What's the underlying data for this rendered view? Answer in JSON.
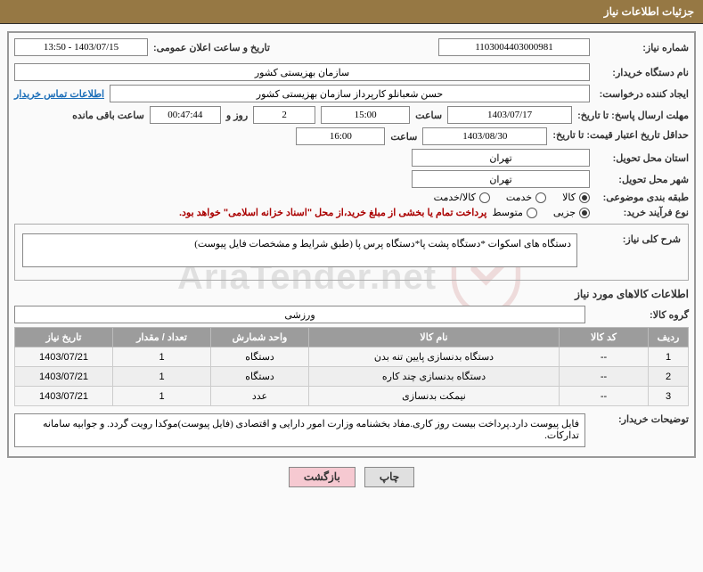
{
  "header": {
    "title": "جزئیات اطلاعات نیاز"
  },
  "watermark": {
    "text": "AriaTender.net"
  },
  "labels": {
    "need_no": "شماره نیاز:",
    "announce_dt": "تاریخ و ساعت اعلان عمومی:",
    "buyer_org": "نام دستگاه خریدار:",
    "requester": "ایجاد کننده درخواست:",
    "contact": "اطلاعات تماس خریدار",
    "deadline": "مهلت ارسال پاسخ: تا تاریخ:",
    "validity": "حداقل تاریخ اعتبار قیمت: تا تاریخ:",
    "time_lbl": "ساعت",
    "days_and": "روز و",
    "remain": "ساعت باقی مانده",
    "deliver_prov": "استان محل تحویل:",
    "deliver_city": "شهر محل تحویل:",
    "category": "طبقه بندی موضوعی:",
    "process": "نوع فرآیند خرید:",
    "desc": "شرح کلی نیاز:",
    "goods_info": "اطلاعات کالاهای مورد نیاز",
    "goods_group": "گروه کالا:",
    "buyer_notes": "توضیحات خریدار:"
  },
  "fields": {
    "need_no": "1103004403000981",
    "announce_dt": "1403/07/15 - 13:50",
    "buyer_org": "سازمان بهزیستی کشور",
    "requester": "حسن  شعبانلو کارپرداز سازمان بهزیستی کشور",
    "deadline_date": "1403/07/17",
    "deadline_time": "15:00",
    "remain_days": "2",
    "remain_time": "00:47:44",
    "validity_date": "1403/08/30",
    "validity_time": "16:00",
    "deliver_prov": "تهران",
    "deliver_city": "تهران",
    "process_note": "پرداخت تمام یا بخشی از مبلغ خرید،از محل \"اسناد خزانه اسلامی\" خواهد بود.",
    "desc": "دستگاه های اسکوات *دستگاه پشت پا*دستگاه پرس پا (طبق شرایط و مشخصات فایل پیوست)",
    "goods_group": "ورزشی",
    "buyer_notes": "فایل پیوست دارد.پرداخت بیست روز کاری.مفاد بخشنامه وزارت امور دارایی و اقتصادی (فایل پیوست)موکدا رویت گردد. و جوابیه سامانه تدارکات."
  },
  "category_opts": {
    "o1": "کالا",
    "o2": "خدمت",
    "o3": "کالا/خدمت",
    "selected": "o1"
  },
  "process_opts": {
    "o1": "جزیی",
    "o2": "متوسط",
    "selected": "o1"
  },
  "table": {
    "headers": {
      "row": "ردیف",
      "code": "کد کالا",
      "name": "نام کالا",
      "unit": "واحد شمارش",
      "qty": "تعداد / مقدار",
      "need_date": "تاریخ نیاز"
    },
    "rows": [
      {
        "n": "1",
        "code": "--",
        "name": "دستگاه بدنسازی پایین تنه بدن",
        "unit": "دستگاه",
        "qty": "1",
        "date": "1403/07/21"
      },
      {
        "n": "2",
        "code": "--",
        "name": "دستگاه بدنسازی چند کاره",
        "unit": "دستگاه",
        "qty": "1",
        "date": "1403/07/21"
      },
      {
        "n": "3",
        "code": "--",
        "name": "نیمکت بدنسازی",
        "unit": "عدد",
        "qty": "1",
        "date": "1403/07/21"
      }
    ]
  },
  "buttons": {
    "print": "چاپ",
    "back": "بازگشت"
  },
  "colors": {
    "header_bg": "#967844",
    "th_bg": "#9c9c9c",
    "btn_back": "#f6c9d1",
    "border": "#999999",
    "link": "#1a6db8",
    "note_red": "#aa0000"
  }
}
